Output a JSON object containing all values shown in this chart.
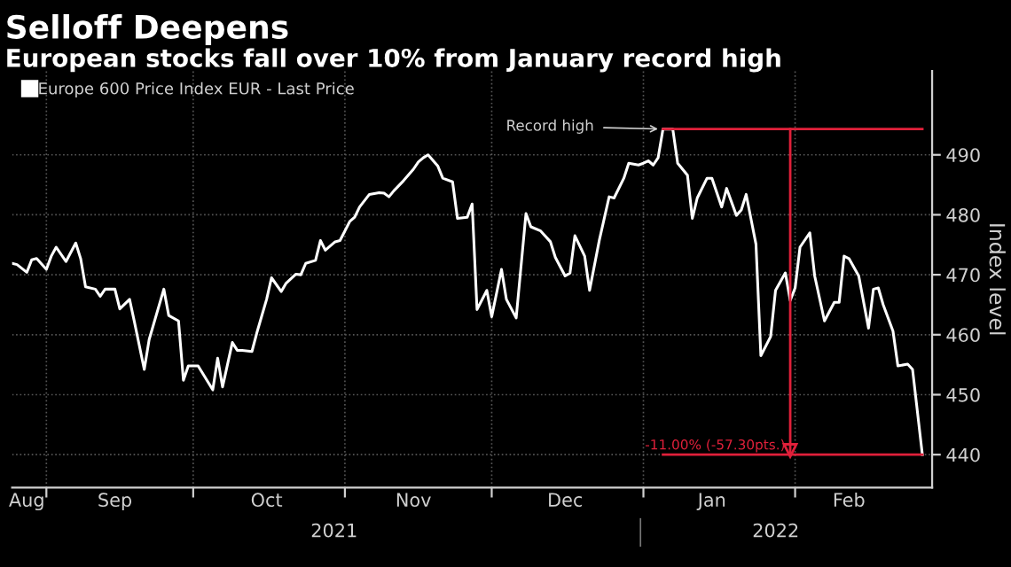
{
  "chart_data": {
    "type": "line",
    "title": "Selloff Deepens",
    "subtitle": "European stocks fall over 10% from January record high",
    "ylabel": "Index level",
    "x": [
      "2021-08-25",
      "2021-08-26",
      "2021-08-28",
      "2021-08-29",
      "2021-08-30",
      "2021-09-01",
      "2021-09-02",
      "2021-09-03",
      "2021-09-05",
      "2021-09-07",
      "2021-09-08",
      "2021-09-09",
      "2021-09-11",
      "2021-09-12",
      "2021-09-13",
      "2021-09-15",
      "2021-09-16",
      "2021-09-18",
      "2021-09-19",
      "2021-09-21",
      "2021-09-22",
      "2021-09-25",
      "2021-09-26",
      "2021-09-28",
      "2021-09-29",
      "2021-09-30",
      "2021-10-02",
      "2021-10-05",
      "2021-10-06",
      "2021-10-07",
      "2021-10-09",
      "2021-10-10",
      "2021-10-11",
      "2021-10-13",
      "2021-10-14",
      "2021-10-16",
      "2021-10-17",
      "2021-10-19",
      "2021-10-20",
      "2021-10-22",
      "2021-10-23",
      "2021-10-24",
      "2021-10-26",
      "2021-10-27",
      "2021-10-28",
      "2021-10-29",
      "2021-10-30",
      "2021-10-31",
      "2021-11-02",
      "2021-11-03",
      "2021-11-04",
      "2021-11-06",
      "2021-11-08",
      "2021-11-09",
      "2021-11-10",
      "2021-11-11",
      "2021-11-13",
      "2021-11-15",
      "2021-11-16",
      "2021-11-17",
      "2021-11-18",
      "2021-11-20",
      "2021-11-21",
      "2021-11-23",
      "2021-11-24",
      "2021-11-26",
      "2021-11-27",
      "2021-11-28",
      "2021-11-30",
      "2021-12-01",
      "2021-12-03",
      "2021-12-04",
      "2021-12-06",
      "2021-12-08",
      "2021-12-09",
      "2021-12-11",
      "2021-12-13",
      "2021-12-14",
      "2021-12-16",
      "2021-12-17",
      "2021-12-18",
      "2021-12-20",
      "2021-12-21",
      "2021-12-23",
      "2021-12-25",
      "2021-12-26",
      "2021-12-28",
      "2021-12-29",
      "2021-12-31",
      "2022-01-01",
      "2022-01-02",
      "2022-01-03",
      "2022-01-04",
      "2022-01-05",
      "2022-01-07",
      "2022-01-08",
      "2022-01-10",
      "2022-01-11",
      "2022-01-12",
      "2022-01-14",
      "2022-01-15",
      "2022-01-17",
      "2022-01-18",
      "2022-01-20",
      "2022-01-21",
      "2022-01-22",
      "2022-01-24",
      "2022-01-25",
      "2022-01-27",
      "2022-01-28",
      "2022-01-30",
      "2022-01-31",
      "2022-02-01",
      "2022-02-02",
      "2022-02-04",
      "2022-02-05",
      "2022-02-07",
      "2022-02-09",
      "2022-02-10",
      "2022-02-11",
      "2022-02-12",
      "2022-02-14",
      "2022-02-16",
      "2022-02-17",
      "2022-02-18",
      "2022-02-19",
      "2022-02-21",
      "2022-02-22",
      "2022-02-24",
      "2022-02-25",
      "2022-02-27"
    ],
    "series": [
      {
        "name": "Europe 600 Price Index EUR - Last Price",
        "color": "#ffffff",
        "values": [
          471.9,
          471.7,
          470.4,
          472.5,
          472.7,
          470.9,
          473.1,
          474.6,
          472.2,
          475.3,
          472.7,
          468.0,
          467.6,
          466.4,
          467.6,
          467.6,
          464.3,
          465.9,
          462.1,
          454.2,
          459.2,
          467.6,
          463.2,
          462.3,
          452.4,
          454.8,
          454.8,
          450.8,
          456.1,
          451.3,
          458.7,
          457.4,
          457.4,
          457.2,
          460.3,
          465.9,
          469.5,
          467.2,
          468.6,
          470.1,
          470.0,
          471.9,
          472.4,
          475.7,
          474.1,
          474.8,
          475.5,
          475.7,
          478.9,
          479.6,
          481.3,
          483.4,
          483.7,
          483.6,
          483.0,
          484.0,
          485.7,
          487.6,
          488.8,
          489.5,
          490.0,
          488.1,
          486.1,
          485.5,
          479.4,
          479.6,
          481.8,
          464.2,
          467.4,
          463.0,
          470.9,
          465.9,
          462.8,
          480.2,
          478.0,
          477.3,
          475.5,
          472.9,
          469.8,
          470.3,
          476.5,
          473.1,
          467.4,
          475.8,
          483.0,
          482.8,
          486.1,
          488.6,
          488.3,
          488.6,
          489.0,
          488.3,
          489.5,
          494.3,
          494.3,
          488.6,
          486.6,
          479.4,
          482.8,
          486.1,
          486.1,
          481.3,
          484.4,
          479.9,
          480.8,
          483.4,
          475.1,
          456.5,
          459.7,
          467.4,
          470.3,
          465.7,
          467.8,
          474.6,
          477.0,
          469.8,
          462.3,
          465.4,
          465.4,
          473.1,
          472.7,
          469.8,
          461.1,
          467.6,
          467.8,
          465.0,
          460.6,
          454.8,
          455.1,
          454.2,
          440.0
        ]
      }
    ],
    "xlim": [
      "2021-08-25",
      "2022-03-01"
    ],
    "xticks": [
      {
        "value": "2021-08-28",
        "label": "Aug"
      },
      {
        "value": "2021-09-01",
        "label": null
      },
      {
        "value": "2021-09-15",
        "label": "Sep"
      },
      {
        "value": "2021-10-01",
        "label": null
      },
      {
        "value": "2021-10-16",
        "label": "Oct"
      },
      {
        "value": "2021-11-01",
        "label": null
      },
      {
        "value": "2021-11-15",
        "label": "Nov"
      },
      {
        "value": "2021-12-01",
        "label": null
      },
      {
        "value": "2021-12-16",
        "label": "Dec"
      },
      {
        "value": "2022-01-01",
        "label": null
      },
      {
        "value": "2022-01-15",
        "label": "Jan"
      },
      {
        "value": "2022-02-01",
        "label": null
      },
      {
        "value": "2022-02-12",
        "label": "Feb"
      }
    ],
    "ylim": [
      434.5,
      504
    ],
    "yticks": [
      440,
      450,
      460,
      470,
      480,
      490
    ],
    "ref_lines": [
      {
        "axis": "y",
        "value": 494.3,
        "color": "#e0203a"
      },
      {
        "axis": "y",
        "value": 440,
        "color": "#e0203a"
      },
      {
        "axis": "x",
        "value": "2022-01-31",
        "color": "#e0203a"
      }
    ],
    "annotations": [
      "2021",
      "2022",
      {
        "text": "Record high",
        "x": "2022-01-05",
        "y": 494.3
      },
      {
        "text": "-11.00% (-57.30pts.)",
        "x": "2022-01-31",
        "y": 440
      }
    ],
    "grid": true,
    "legend": "top left",
    "marker": "none",
    "line_style": "solid"
  }
}
